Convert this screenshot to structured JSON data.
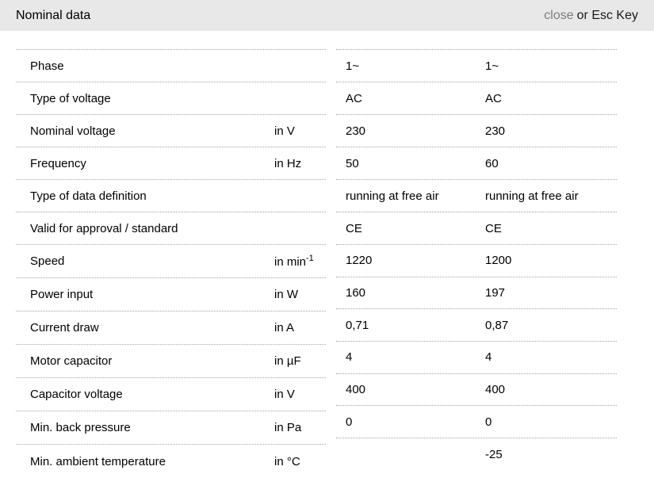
{
  "header": {
    "title": "Nominal data",
    "close_label": "close",
    "esc_label": "or Esc Key"
  },
  "colors": {
    "header_bg": "#e8e8e8",
    "close_link": "#7c7c7c",
    "dotted_rule": "#a3a3a3"
  },
  "table": {
    "rows": [
      {
        "label": "Phase",
        "unit": "",
        "v1": "1~",
        "v2": "1~"
      },
      {
        "label": "Type of voltage",
        "unit": "",
        "v1": "AC",
        "v2": "AC"
      },
      {
        "label": "Nominal voltage",
        "unit": "in V",
        "v1": "230",
        "v2": "230"
      },
      {
        "label": "Frequency",
        "unit": "in Hz",
        "v1": "50",
        "v2": "60"
      },
      {
        "label": "Type of data definition",
        "unit": "",
        "v1": "running at free air",
        "v2": "running at free air"
      },
      {
        "label": "Valid for approval / standard",
        "unit": "",
        "v1": "CE",
        "v2": "CE"
      },
      {
        "label": "Speed",
        "unit": "in min",
        "unit_sup": "-1",
        "v1": "1220",
        "v2": "1200"
      },
      {
        "label": "Power input",
        "unit": "in W",
        "v1": "160",
        "v2": "197"
      },
      {
        "label": "Current draw",
        "unit": "in A",
        "v1": "0,71",
        "v2": "0,87"
      },
      {
        "label": "Motor capacitor",
        "unit": "in µF",
        "v1": "4",
        "v2": "4"
      },
      {
        "label": "Capacitor voltage",
        "unit": "in V",
        "v1": "400",
        "v2": "400"
      },
      {
        "label": "Min. back pressure",
        "unit": "in Pa",
        "v1": "0",
        "v2": "0"
      },
      {
        "label": "Min. ambient temperature",
        "unit": "in °C",
        "v1": "",
        "v2": "-25"
      }
    ]
  }
}
